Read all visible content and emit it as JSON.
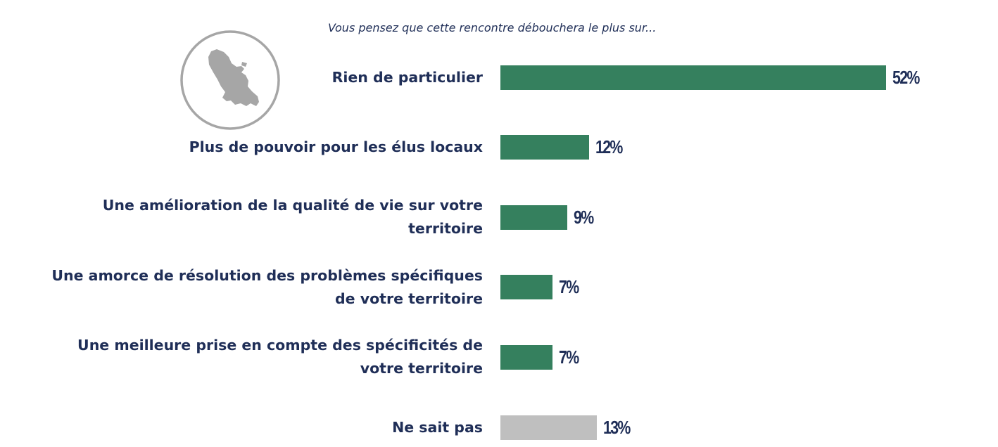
{
  "question": "Vous pensez que cette rencontre débouchera le plus sur...",
  "icon": "martinique-map-icon",
  "colors": {
    "main_bar": "#35805e",
    "dont_know_bar": "#bfbfbf",
    "text": "#1f2e57",
    "icon_gray": "#a6a6a6"
  },
  "chart_data": {
    "type": "bar",
    "orientation": "horizontal",
    "title": "Vous pensez que cette rencontre débouchera le plus sur...",
    "categories": [
      "Rien de particulier",
      "Plus de pouvoir pour les élus locaux",
      "Une amélioration de la qualité de vie sur votre territoire",
      "Une amorce de résolution des problèmes spécifiques de votre territoire",
      "Une meilleure prise en compte des spécificités de votre territoire",
      "Ne sait pas"
    ],
    "values": [
      52,
      12,
      9,
      7,
      7,
      13
    ],
    "value_labels": [
      "52%",
      "12%",
      "9%",
      "7%",
      "7%",
      "13%"
    ],
    "bar_colors": [
      "#35805e",
      "#35805e",
      "#35805e",
      "#35805e",
      "#35805e",
      "#bfbfbf"
    ],
    "xlabel": "",
    "ylabel": "",
    "xlim": [
      0,
      52
    ],
    "grid": false,
    "legend": "none"
  }
}
